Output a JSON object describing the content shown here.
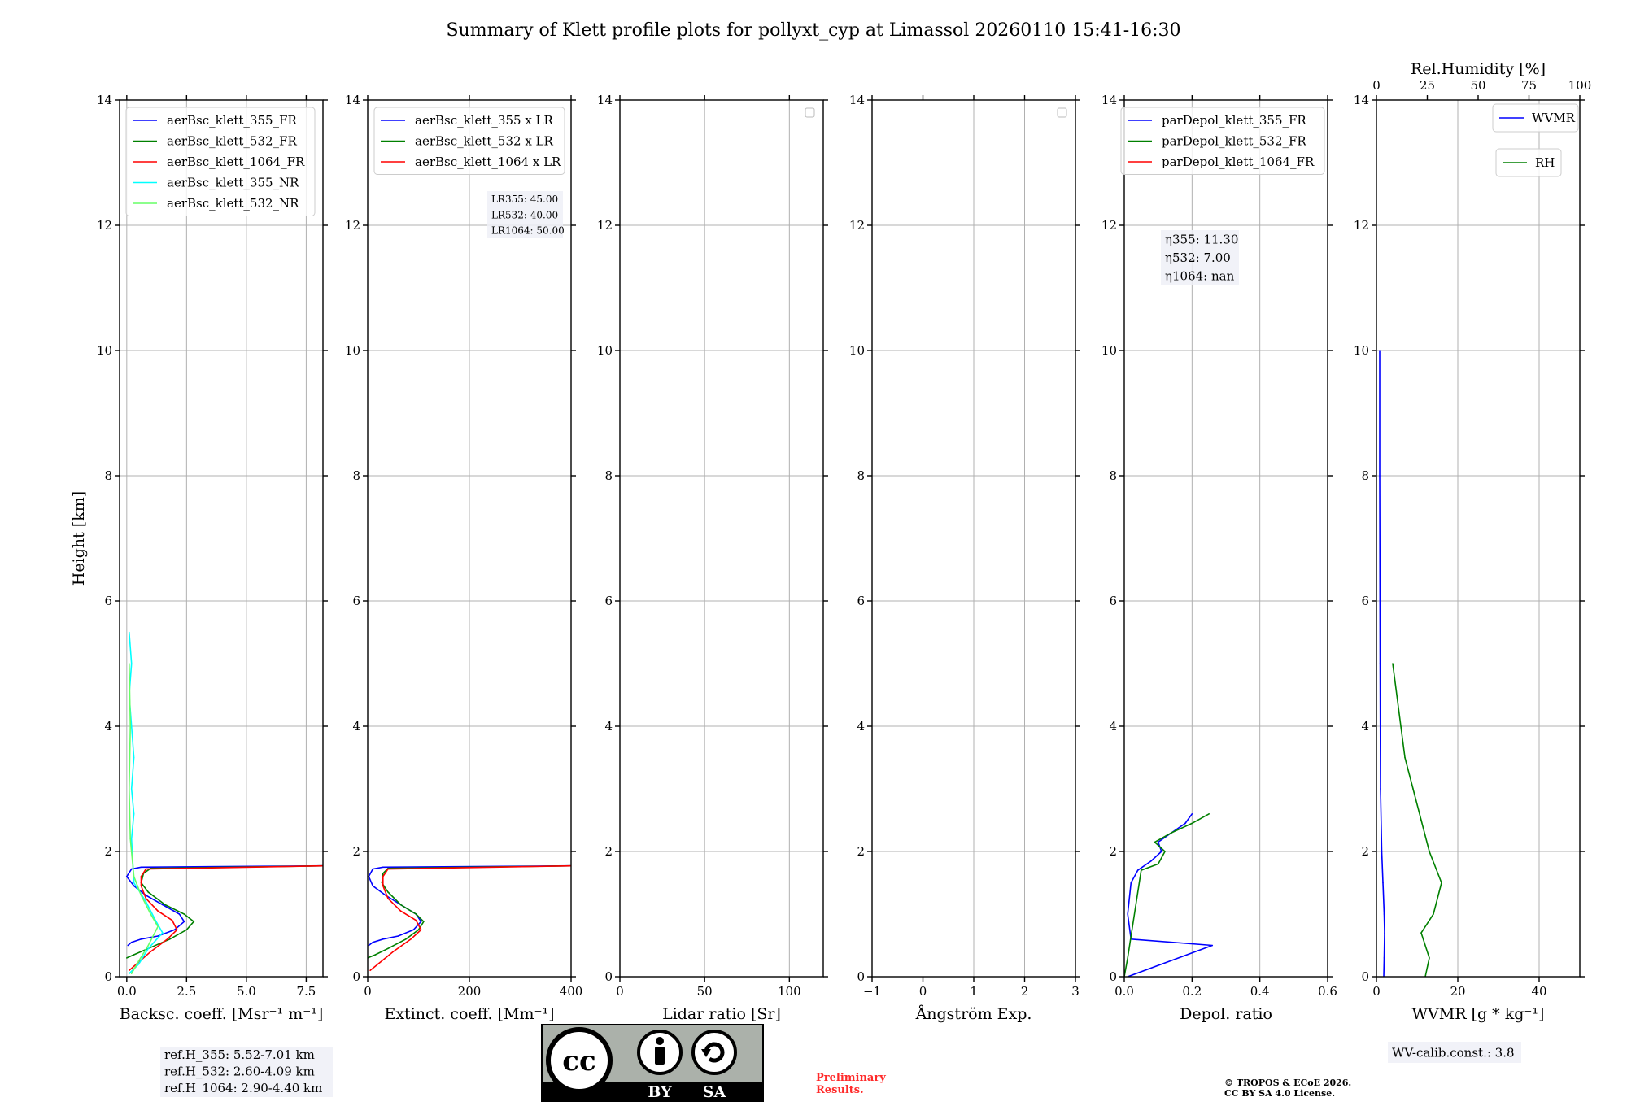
{
  "title": "Summary of Klett profile plots for pollyxt_cyp at Limassol 20260110 15:41-16:30",
  "chart_data": [
    {
      "type": "line",
      "id": "bsc",
      "xlabel": "Backsc. coeff. [Msr⁻¹ m⁻¹]",
      "ylabel": "Height [km]",
      "xlim": [
        -0.3,
        8.2
      ],
      "ylim": [
        0,
        14
      ],
      "xticks": [
        0,
        2.5,
        5,
        7.5
      ],
      "xtick_labels": [
        "0.0",
        "2.5",
        "5.0",
        "7.5"
      ],
      "yticks": [
        0,
        2,
        4,
        6,
        8,
        10,
        12,
        14
      ],
      "legend": [
        "aerBsc_klett_355_FR",
        "aerBsc_klett_532_FR",
        "aerBsc_klett_1064_FR",
        "aerBsc_klett_355_NR",
        "aerBsc_klett_532_NR"
      ],
      "series": [
        {
          "name": "aerBsc_klett_355_FR",
          "color": "#0000ff",
          "x": [
            0.05,
            0.2,
            0.6,
            1.3,
            2.0,
            2.4,
            2.2,
            1.5,
            0.8,
            0.3,
            0.0,
            0.2,
            0.6,
            8.2
          ],
          "y": [
            0.5,
            0.55,
            0.6,
            0.65,
            0.75,
            0.88,
            1.0,
            1.15,
            1.3,
            1.45,
            1.6,
            1.72,
            1.75,
            1.77
          ]
        },
        {
          "name": "aerBsc_klett_532_FR",
          "color": "#008000",
          "x": [
            0.0,
            0.3,
            0.9,
            1.8,
            2.5,
            2.8,
            2.4,
            1.6,
            0.9,
            0.6,
            0.7,
            1.0,
            8.2
          ],
          "y": [
            0.3,
            0.35,
            0.45,
            0.6,
            0.75,
            0.88,
            1.0,
            1.15,
            1.35,
            1.5,
            1.65,
            1.73,
            1.77
          ]
        },
        {
          "name": "aerBsc_klett_1064_FR",
          "color": "#ff0000",
          "x": [
            0.1,
            0.4,
            1.0,
            1.7,
            2.1,
            1.9,
            1.3,
            0.8,
            0.6,
            0.6,
            0.8,
            8.2
          ],
          "y": [
            0.1,
            0.2,
            0.4,
            0.6,
            0.75,
            0.9,
            1.05,
            1.25,
            1.45,
            1.6,
            1.72,
            1.77
          ]
        },
        {
          "name": "aerBsc_klett_355_NR",
          "color": "#00ffff",
          "x": [
            0.1,
            0.5,
            0.9,
            1.5,
            1.2,
            0.8,
            0.3,
            0.2,
            0.3,
            0.2,
            0.3,
            0.2,
            0.1,
            0.2,
            0.1
          ],
          "y": [
            0.05,
            0.2,
            0.45,
            0.7,
            0.9,
            1.2,
            1.5,
            2.2,
            2.6,
            3.0,
            3.5,
            4.0,
            4.5,
            5.0,
            5.5
          ]
        },
        {
          "name": "aerBsc_klett_532_NR",
          "color": "#66ff66",
          "x": [
            0.2,
            0.5,
            0.9,
            1.3,
            1.0,
            0.6,
            0.3,
            0.15,
            0.1,
            0.15,
            0.1
          ],
          "y": [
            0.05,
            0.25,
            0.5,
            0.8,
            1.0,
            1.3,
            1.6,
            2.2,
            3.0,
            4.0,
            5.0
          ]
        }
      ],
      "annotation": [
        "ref.H_355: 5.52-7.01 km",
        "ref.H_532: 2.60-4.09 km",
        "ref.H_1064: 2.90-4.40 km"
      ]
    },
    {
      "type": "line",
      "id": "ext",
      "xlabel": "Extinct. coeff. [Mm⁻¹]",
      "xlim": [
        0,
        400
      ],
      "ylim": [
        0,
        14
      ],
      "xticks": [
        0,
        200,
        400
      ],
      "xtick_labels": [
        "0",
        "200",
        "400"
      ],
      "yticks": [
        0,
        2,
        4,
        6,
        8,
        10,
        12,
        14
      ],
      "legend": [
        "aerBsc_klett_355 x LR",
        "aerBsc_klett_532 x LR",
        "aerBsc_klett_1064 x LR"
      ],
      "series": [
        {
          "name": "aerBsc_klett_355 x LR",
          "color": "#0000ff",
          "x": [
            2,
            10,
            30,
            60,
            90,
            105,
            95,
            65,
            35,
            10,
            2,
            10,
            30,
            400
          ],
          "y": [
            0.5,
            0.55,
            0.6,
            0.65,
            0.75,
            0.88,
            1.0,
            1.15,
            1.3,
            1.45,
            1.6,
            1.72,
            1.75,
            1.77
          ]
        },
        {
          "name": "aerBsc_klett_532 x LR",
          "color": "#008000",
          "x": [
            0,
            15,
            40,
            75,
            100,
            110,
            95,
            65,
            40,
            28,
            30,
            40,
            400
          ],
          "y": [
            0.3,
            0.35,
            0.45,
            0.6,
            0.75,
            0.88,
            1.0,
            1.15,
            1.35,
            1.5,
            1.65,
            1.73,
            1.77
          ]
        },
        {
          "name": "aerBsc_klett_1064 x LR",
          "color": "#ff0000",
          "x": [
            5,
            20,
            50,
            85,
            105,
            95,
            65,
            40,
            30,
            30,
            40,
            400
          ],
          "y": [
            0.1,
            0.2,
            0.4,
            0.6,
            0.75,
            0.9,
            1.05,
            1.25,
            1.45,
            1.6,
            1.72,
            1.77
          ]
        }
      ],
      "annotation": [
        "LR355: 45.00",
        "LR532: 40.00",
        "LR1064: 50.00"
      ]
    },
    {
      "type": "line",
      "id": "lr",
      "xlabel": "Lidar ratio [Sr]",
      "xlim": [
        0,
        120
      ],
      "ylim": [
        0,
        14
      ],
      "xticks": [
        0,
        50,
        100
      ],
      "xtick_labels": [
        "0",
        "50",
        "100"
      ],
      "yticks": [
        0,
        2,
        4,
        6,
        8,
        10,
        12,
        14
      ],
      "series": []
    },
    {
      "type": "line",
      "id": "ang",
      "xlabel": "Ångström Exp.",
      "xlim": [
        -1,
        3
      ],
      "ylim": [
        0,
        14
      ],
      "xticks": [
        -1,
        0,
        1,
        2,
        3
      ],
      "xtick_labels": [
        "−1",
        "0",
        "1",
        "2",
        "3"
      ],
      "yticks": [
        0,
        2,
        4,
        6,
        8,
        10,
        12,
        14
      ],
      "series": []
    },
    {
      "type": "line",
      "id": "dep",
      "xlabel": "Depol. ratio",
      "xlim": [
        0,
        0.6
      ],
      "ylim": [
        0,
        14
      ],
      "xticks": [
        0,
        0.2,
        0.4,
        0.6
      ],
      "xtick_labels": [
        "0.0",
        "0.2",
        "0.4",
        "0.6"
      ],
      "yticks": [
        0,
        2,
        4,
        6,
        8,
        10,
        12,
        14
      ],
      "legend": [
        "parDepol_klett_355_FR",
        "parDepol_klett_532_FR",
        "parDepol_klett_1064_FR"
      ],
      "series": [
        {
          "name": "parDepol_klett_355_FR",
          "color": "#0000ff",
          "x": [
            0.01,
            0.26,
            0.02,
            0.01,
            0.02,
            0.04,
            0.08,
            0.11,
            0.1,
            0.14,
            0.18,
            0.2
          ],
          "y": [
            0.0,
            0.5,
            0.6,
            1.0,
            1.5,
            1.7,
            1.85,
            2.0,
            2.15,
            2.3,
            2.45,
            2.6
          ]
        },
        {
          "name": "parDepol_klett_532_FR",
          "color": "#008000",
          "x": [
            0.0,
            0.01,
            0.05,
            0.1,
            0.12,
            0.09,
            0.14,
            0.2,
            0.25
          ],
          "y": [
            0.0,
            0.3,
            1.7,
            1.8,
            2.0,
            2.15,
            2.3,
            2.45,
            2.6
          ]
        }
      ],
      "annotation": [
        "η355: 11.30",
        "η532: 7.00",
        "η1064: nan"
      ]
    },
    {
      "type": "line",
      "id": "wv",
      "xlabel": "WVMR [g * kg⁻¹]",
      "x2label": "Rel.Humidity [%]",
      "xlim": [
        0,
        50
      ],
      "x2lim": [
        0,
        100
      ],
      "ylim": [
        0,
        14
      ],
      "xticks": [
        0,
        20,
        40
      ],
      "xtick_labels": [
        "0",
        "20",
        "40"
      ],
      "x2ticks": [
        0,
        25,
        50,
        75,
        100
      ],
      "x2tick_labels": [
        "0",
        "25",
        "50",
        "75",
        "100"
      ],
      "yticks": [
        0,
        2,
        4,
        6,
        8,
        10,
        12,
        14
      ],
      "legend": [
        "WVMR",
        "RH"
      ],
      "series": [
        {
          "name": "WVMR",
          "color": "#0000ff",
          "x": [
            1.8,
            1.9,
            2.0,
            1.9,
            1.6,
            1.3,
            1.0,
            0.9,
            0.8,
            0.8
          ],
          "y": [
            0.0,
            0.3,
            0.7,
            1.0,
            1.5,
            2.0,
            3.0,
            5.0,
            8.0,
            10.0
          ]
        },
        {
          "name": "RH",
          "color": "#008000",
          "axis": "x2",
          "x": [
            24,
            26,
            22,
            28,
            32,
            26,
            22,
            18,
            14,
            12,
            10,
            8
          ],
          "y": [
            0.0,
            0.3,
            0.7,
            1.0,
            1.5,
            2.0,
            2.5,
            3.0,
            3.5,
            4.0,
            4.5,
            5.0
          ]
        }
      ],
      "annotation": [
        "WV-calib.const.: 3.8"
      ]
    }
  ],
  "license": {
    "cc": "cc",
    "by": "BY",
    "sa": "SA"
  },
  "preliminary": [
    "Preliminary",
    "Results."
  ],
  "copyright": [
    "© TROPOS & ECoE 2026.",
    "CC BY SA 4.0 License."
  ],
  "colors": {
    "blue": "#0000ff",
    "green": "#008000",
    "red": "#ff0000",
    "cyan": "#00ffff",
    "lightgreen": "#66ff66",
    "prelim": "#ff2a2a"
  }
}
